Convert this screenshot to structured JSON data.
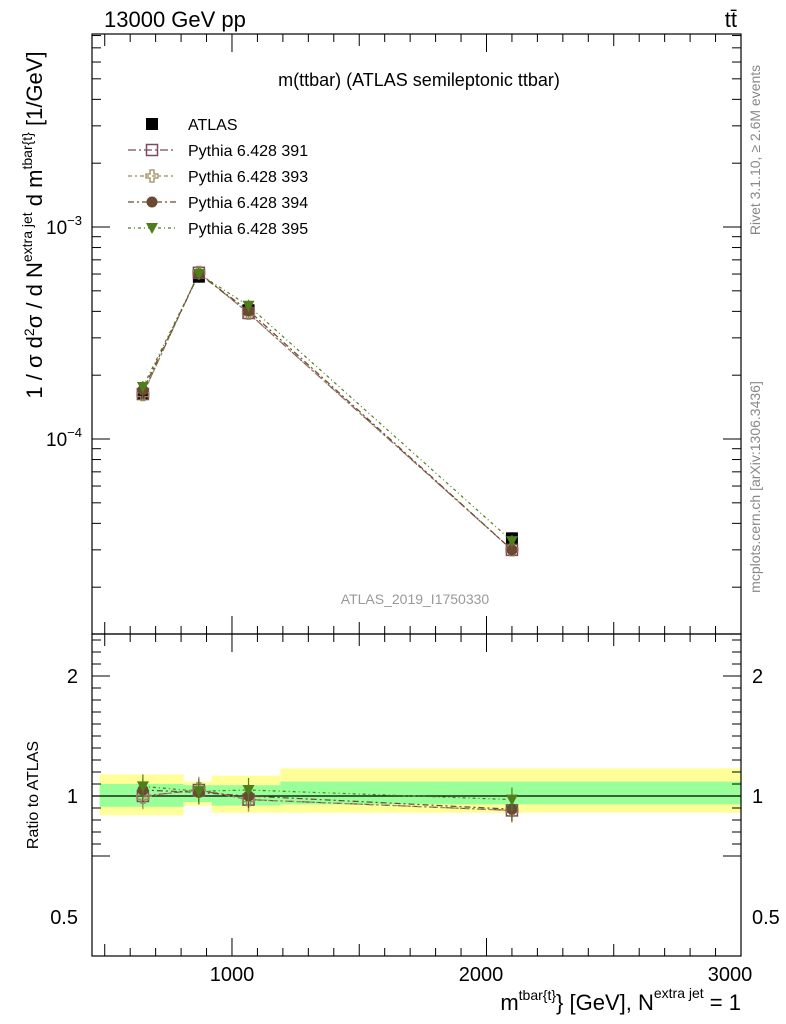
{
  "header": {
    "energy_label": "13000 GeV pp",
    "process_label": "tt̄"
  },
  "side_labels": {
    "rivet": "Rivet 3.1.10, ≥ 2.6M events",
    "mcplots": "mcplots.cern.ch [arXiv:1306.3436]"
  },
  "chart_data": [
    {
      "type": "scatter",
      "title": "m(ttbar) (ATLAS semileptonic ttbar)",
      "watermark": "ATLAS_2019_I1750330",
      "ylabel": "1 / σ d²σ / d N^{extra jet} d m^{tbar{t}} [1/GeV]",
      "yscale": "log",
      "xlim": [
        450,
        3000
      ],
      "ylim": [
        1.2e-05,
        0.0085
      ],
      "ytick_labels": [
        "10^{-3}",
        "10^{-4}"
      ],
      "x": [
        650,
        870,
        1065,
        2100
      ],
      "legend_position": "top-left",
      "series": [
        {
          "name": "ATLAS",
          "color": "#000000",
          "marker": "filled-square",
          "values": [
            0.000163,
            0.000583,
            0.000405,
            3.4e-05
          ]
        },
        {
          "name": "Pythia 6.428 391",
          "color": "#7a4a5e",
          "marker": "open-square",
          "values": [
            0.000163,
            0.000608,
            0.000393,
            3e-05
          ]
        },
        {
          "name": "Pythia 6.428 393",
          "color": "#9c8a5a",
          "marker": "open-cross",
          "values": [
            0.000162,
            0.000611,
            0.000392,
            3e-05
          ]
        },
        {
          "name": "Pythia 6.428 394",
          "color": "#6b4a33",
          "marker": "filled-circle",
          "values": [
            0.00017,
            0.0006,
            0.000404,
            3e-05
          ]
        },
        {
          "name": "Pythia 6.428 395",
          "color": "#4f7f1a",
          "marker": "filled-triangle-down",
          "values": [
            0.000176,
            0.000601,
            0.000425,
            3.3e-05
          ]
        }
      ]
    },
    {
      "type": "scatter",
      "ylabel": "Ratio to ATLAS",
      "xlabel": "m^{tbar{t}} [GeV], N^{extra jet} = 1",
      "xlim": [
        450,
        3000
      ],
      "ylim": [
        0.4,
        2.4
      ],
      "ytick_labels": [
        "2",
        "1",
        "0.5"
      ],
      "xtick_labels": [
        "1000",
        "2000",
        "3000"
      ],
      "x": [
        650,
        870,
        1065,
        2100
      ],
      "bands": [
        {
          "x_range": [
            480,
            810
          ],
          "stat": [
            0.91,
            1.1
          ],
          "total": [
            0.84,
            1.18
          ]
        },
        {
          "x_range": [
            810,
            920
          ],
          "stat": [
            0.95,
            1.09
          ],
          "total": [
            0.92,
            1.12
          ]
        },
        {
          "x_range": [
            920,
            1190
          ],
          "stat": [
            0.92,
            1.09
          ],
          "total": [
            0.86,
            1.17
          ]
        },
        {
          "x_range": [
            1190,
            3000
          ],
          "stat": [
            0.93,
            1.12
          ],
          "total": [
            0.86,
            1.23
          ]
        }
      ],
      "series": [
        {
          "name": "Pythia 6.428 391",
          "values": [
            1.0,
            1.05,
            0.97,
            0.88
          ]
        },
        {
          "name": "Pythia 6.428 393",
          "values": [
            0.99,
            1.06,
            0.97,
            0.88
          ]
        },
        {
          "name": "Pythia 6.428 394",
          "values": [
            1.05,
            1.03,
            1.0,
            0.89
          ]
        },
        {
          "name": "Pythia 6.428 395",
          "values": [
            1.08,
            1.04,
            1.05,
            0.97
          ]
        }
      ]
    }
  ]
}
